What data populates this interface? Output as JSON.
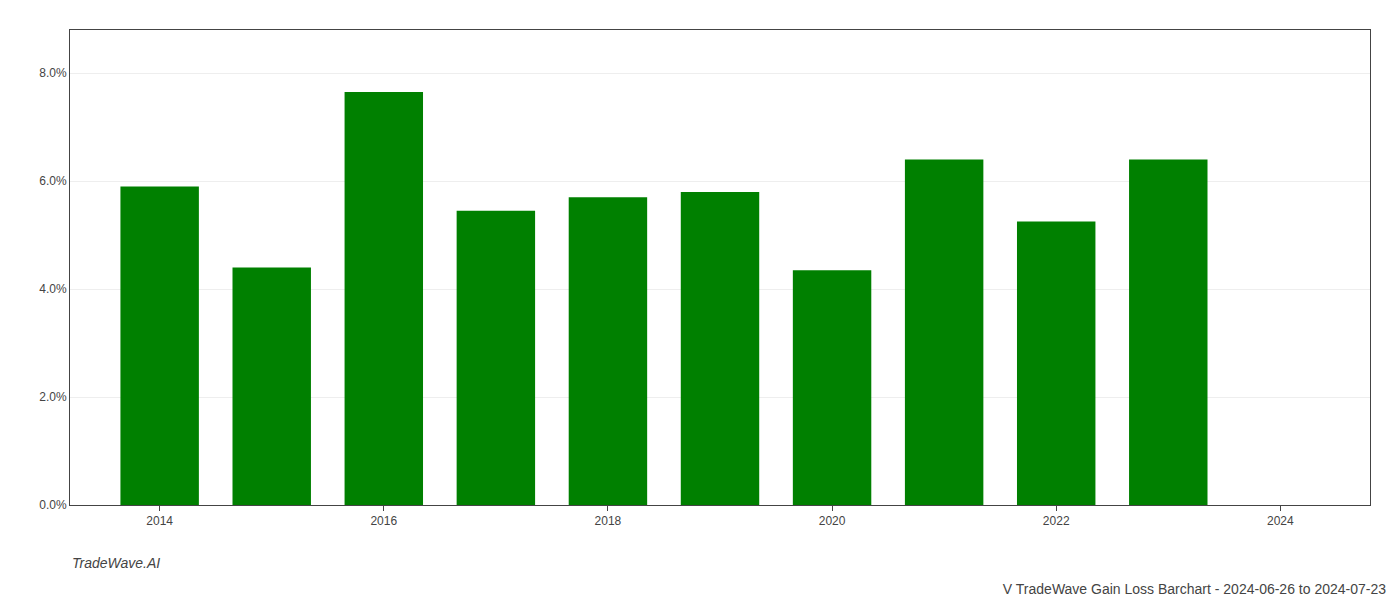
{
  "chart_data": {
    "type": "bar",
    "title": "V TradeWave Gain Loss Barchart - 2024-06-26 to 2024-07-23",
    "annotations": [
      "TradeWave.AI"
    ],
    "x": [
      2014,
      2015,
      2016,
      2017,
      2018,
      2019,
      2020,
      2021,
      2022,
      2023
    ],
    "values": [
      0.059,
      0.044,
      0.0765,
      0.0545,
      0.057,
      0.058,
      0.0435,
      0.064,
      0.0525,
      0.064
    ],
    "color": "#008000",
    "xlim": [
      2013.2,
      2024.8
    ],
    "xticks": [
      2014,
      2016,
      2018,
      2020,
      2022,
      2024
    ],
    "ylim": [
      0.0,
      0.088
    ],
    "yticks": [
      {
        "value": 0.0,
        "label": "0.0%"
      },
      {
        "value": 0.02,
        "label": "2.0%"
      },
      {
        "value": 0.04,
        "label": "4.0%"
      },
      {
        "value": 0.06,
        "label": "6.0%"
      },
      {
        "value": 0.08,
        "label": "8.0%"
      }
    ],
    "grid": true
  }
}
